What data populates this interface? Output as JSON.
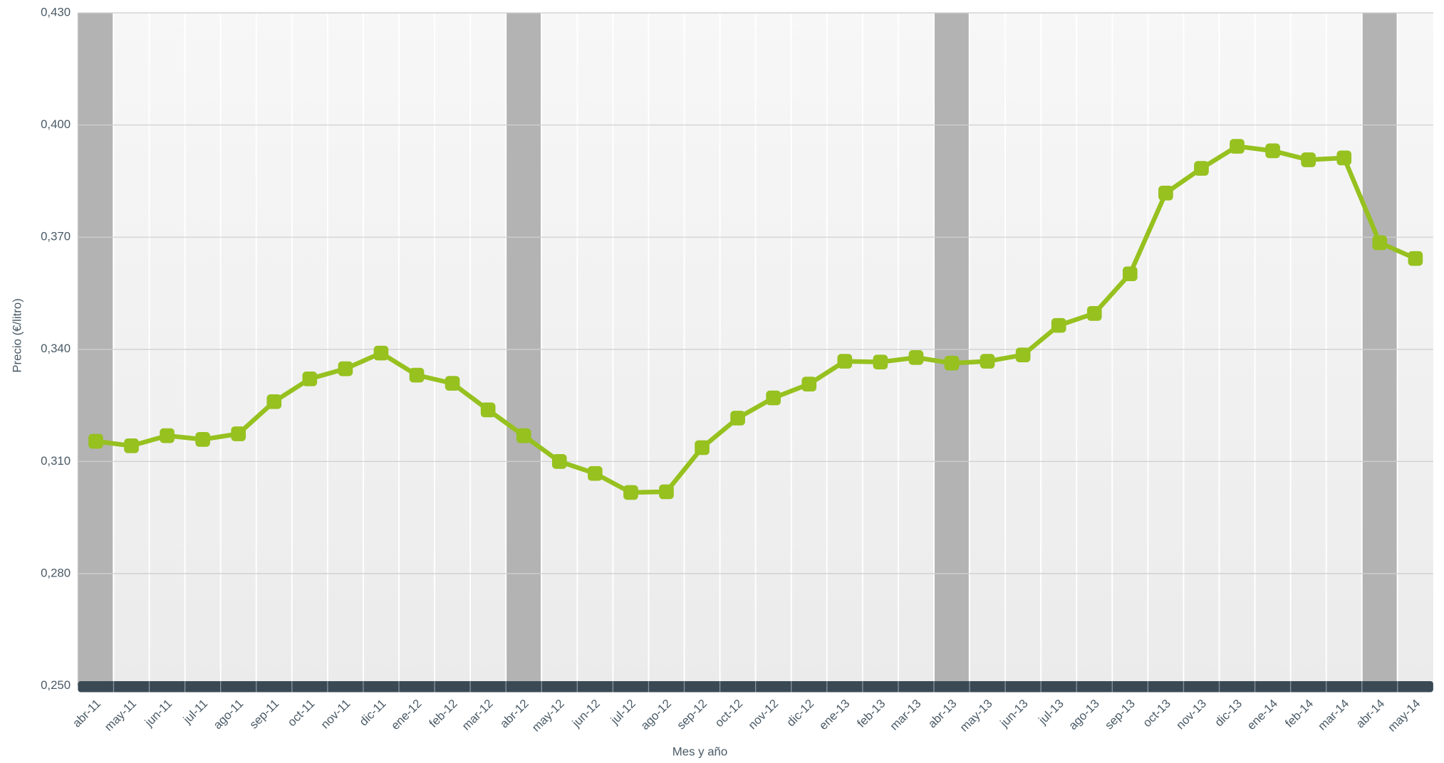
{
  "chart_data": {
    "type": "line",
    "x_label": "Mes y año",
    "y_label": "Precio (€/litro)",
    "categories": [
      "abr-11",
      "may-11",
      "jun-11",
      "jul-11",
      "ago-11",
      "sep-11",
      "oct-11",
      "nov-11",
      "dic-11",
      "ene-12",
      "feb-12",
      "mar-12",
      "abr-12",
      "may-12",
      "jun-12",
      "jul-12",
      "ago-12",
      "sep-12",
      "oct-12",
      "nov-12",
      "dic-12",
      "ene-13",
      "feb-13",
      "mar-13",
      "abr-13",
      "may-13",
      "jun-13",
      "jul-13",
      "ago-13",
      "sep-13",
      "oct-13",
      "nov-13",
      "dic-13",
      "ene-14",
      "feb-14",
      "mar-14",
      "abr-14",
      "may-14"
    ],
    "series": [
      {
        "name": "Precio",
        "color": "#96c11f",
        "values": [
          0.3154,
          0.3142,
          0.3169,
          0.3159,
          0.3174,
          0.326,
          0.3321,
          0.3348,
          0.339,
          0.3331,
          0.3309,
          0.3238,
          0.3169,
          0.31,
          0.3068,
          0.3017,
          0.3019,
          0.3137,
          0.3216,
          0.327,
          0.3307,
          0.3368,
          0.3366,
          0.3378,
          0.3363,
          0.3368,
          0.3385,
          0.3464,
          0.3496,
          0.3602,
          0.3818,
          0.3884,
          0.3943,
          0.3931,
          0.3907,
          0.3912,
          0.3685,
          0.3643
        ]
      }
    ],
    "ylim": [
      0.25,
      0.43
    ],
    "yticks": [
      {
        "value": 0.25,
        "label": "0,250"
      },
      {
        "value": 0.28,
        "label": "0,280"
      },
      {
        "value": 0.31,
        "label": "0,310"
      },
      {
        "value": 0.34,
        "label": "0,340"
      },
      {
        "value": 0.37,
        "label": "0,370"
      },
      {
        "value": 0.4,
        "label": "0,400"
      },
      {
        "value": 0.43,
        "label": "0,430"
      }
    ],
    "grid": true
  }
}
